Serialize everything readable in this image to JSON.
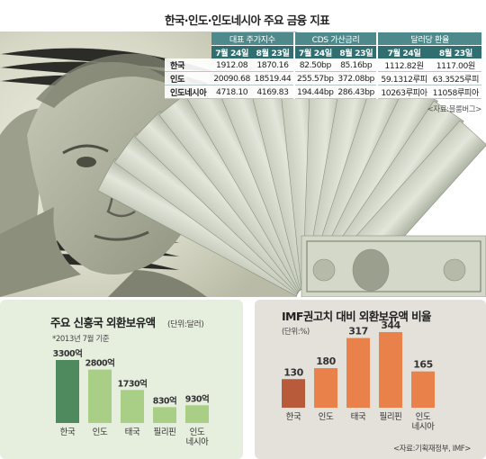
{
  "table": {
    "title": "한국·인도·인도네시아 주요 금융 지표",
    "groups": [
      "대표 주가지수",
      "CDS 가산금리",
      "달러당 환율"
    ],
    "dates": [
      "7월 24일",
      "8월 23일",
      "7월 24일",
      "8월 23일",
      "7월 24일",
      "8월 23일"
    ],
    "rows": [
      {
        "name": "한국",
        "cells": [
          "1912.08",
          "1870.16",
          "82.50bp",
          "85.16bp",
          "1112.82원",
          "1117.00원"
        ]
      },
      {
        "name": "인도",
        "cells": [
          "20090.68",
          "18519.44",
          "255.57bp",
          "372.08bp",
          "59.1312루피",
          "63.3525루피"
        ]
      },
      {
        "name": "인도네시아",
        "cells": [
          "4718.10",
          "4169.83",
          "194.44bp",
          "286.43bp",
          "10263루피아",
          "11058루피아"
        ]
      }
    ],
    "source": "<자료:블룸버그>"
  },
  "chart_data": [
    {
      "type": "bar",
      "title": "주요 신흥국 외환보유액",
      "unit_note": "(단위:달러)",
      "subtitle": "*2013년 7월 기준",
      "categories": [
        "한국",
        "인도",
        "태국",
        "필리핀",
        "인도네시아"
      ],
      "category_lines": [
        [
          "한국"
        ],
        [
          "인도"
        ],
        [
          "태국"
        ],
        [
          "필리핀"
        ],
        [
          "인도",
          "네시아"
        ]
      ],
      "values": [
        3300,
        2800,
        1730,
        830,
        930
      ],
      "value_labels": [
        "3300억",
        "2800억",
        "1730억",
        "830억",
        "930억"
      ],
      "ylim": [
        0,
        3300
      ],
      "colors": {
        "highlight": "#4f8a5e",
        "default": "#a9cf86"
      }
    },
    {
      "type": "bar",
      "title": "IMF권고치 대비 외환보유액 비율",
      "unit_note": "(단위:%)",
      "categories": [
        "한국",
        "인도",
        "태국",
        "필리핀",
        "인도네시아"
      ],
      "category_lines": [
        [
          "한국"
        ],
        [
          "인도"
        ],
        [
          "태국"
        ],
        [
          "필리핀"
        ],
        [
          "인도",
          "네시아"
        ]
      ],
      "values": [
        130,
        180,
        317,
        344,
        165
      ],
      "value_labels": [
        "130",
        "180",
        "317",
        "344",
        "165"
      ],
      "ylim": [
        0,
        344
      ],
      "source": "<자료:기획재정부, IMF>",
      "colors": {
        "highlight": "#b75b3a",
        "default": "#e8814a"
      }
    }
  ]
}
